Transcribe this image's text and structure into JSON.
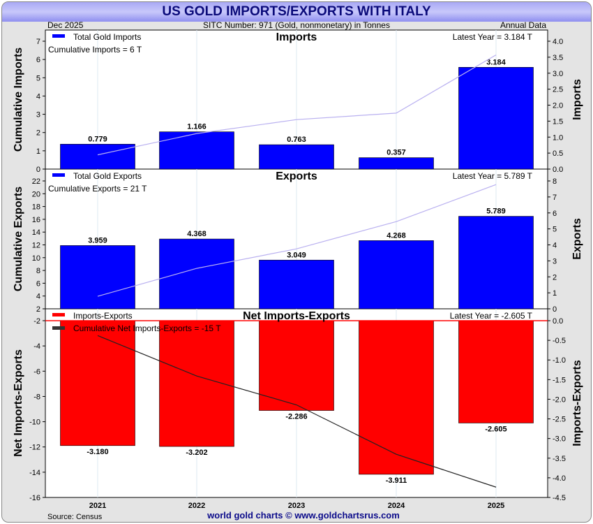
{
  "title": "US GOLD IMPORTS/EXPORTS WITH ITALY",
  "header": {
    "date": "Dec  2025",
    "sitc": "SITC Number: 971 (Gold, nonmonetary) in Tonnes",
    "period": "Annual Data"
  },
  "footer": {
    "source": "Source: Census",
    "credit": "world gold charts © www.goldchartsrus.com"
  },
  "colors": {
    "imports": "#0000ff",
    "exports": "#0000ff",
    "net": "#ff0000",
    "cum_line": "#b9b0f0",
    "net_cum_line": "#222222"
  },
  "chart_data": [
    {
      "type": "bar",
      "title": "Imports",
      "legend": "Total Gold Imports",
      "annotation": "Cumulative Imports = 6 T",
      "latest": "Latest Year = 3.184 T",
      "categories": [
        "2021",
        "2022",
        "2023",
        "2024",
        "2025"
      ],
      "values": [
        0.779,
        1.166,
        0.763,
        0.357,
        3.184
      ],
      "labels": [
        "0.779",
        "1.166",
        "0.763",
        "0.357",
        "3.184"
      ],
      "cumulative": [
        0.779,
        1.945,
        2.708,
        3.065,
        6.249
      ],
      "ylabel_left": "Cumulative Imports",
      "ylabel_right": "Imports",
      "ylim_left": [
        0,
        7
      ],
      "ylim_right": [
        0,
        4
      ],
      "ticks_left": [
        "0",
        "1",
        "2",
        "3",
        "4",
        "5",
        "6",
        "7"
      ],
      "ticks_right": [
        "0.0",
        "0.5",
        "1.0",
        "1.5",
        "2.0",
        "2.5",
        "3.0",
        "3.5",
        "4.0"
      ]
    },
    {
      "type": "bar",
      "title": "Exports",
      "legend": "Total Gold Exports",
      "annotation": "Cumulative Exports = 21 T",
      "latest": "Latest Year = 5.789 T",
      "categories": [
        "2021",
        "2022",
        "2023",
        "2024",
        "2025"
      ],
      "values": [
        3.959,
        4.368,
        3.049,
        4.268,
        5.789
      ],
      "labels": [
        "3.959",
        "4.368",
        "3.049",
        "4.268",
        "5.789"
      ],
      "cumulative": [
        3.959,
        8.327,
        11.376,
        15.644,
        21.433
      ],
      "ylabel_left": "Cumulative Exports",
      "ylabel_right": "Exports",
      "ylim_left": [
        2,
        22
      ],
      "ylim_right": [
        0,
        8
      ],
      "ticks_left": [
        "2",
        "4",
        "6",
        "8",
        "10",
        "12",
        "14",
        "16",
        "18",
        "20",
        "22"
      ],
      "ticks_right": [
        "0",
        "1",
        "2",
        "3",
        "4",
        "5",
        "6",
        "7",
        "8"
      ]
    },
    {
      "type": "bar",
      "title": "Net Imports-Exports",
      "legend": "Imports-Exports",
      "legend2": "Cumulative Net Imports-Exports = -15 T",
      "latest": "Latest Year = -2.605 T",
      "categories": [
        "2021",
        "2022",
        "2023",
        "2024",
        "2025"
      ],
      "values": [
        -3.18,
        -3.202,
        -2.286,
        -3.911,
        -2.605
      ],
      "labels": [
        "-3.180",
        "-3.202",
        "-2.286",
        "-3.911",
        "-2.605"
      ],
      "cumulative": [
        -3.18,
        -6.382,
        -8.668,
        -12.579,
        -15.184
      ],
      "ylabel_left": "Net Imports-Exports",
      "ylabel_right": "Imports-Exports",
      "ylim_left": [
        -16,
        -2
      ],
      "ylim_right": [
        -4.5,
        0
      ],
      "ticks_left": [
        "-16",
        "-14",
        "-12",
        "-10",
        "-8",
        "-6",
        "-4",
        "-2"
      ],
      "ticks_right": [
        "-4.5",
        "-4.0",
        "-3.5",
        "-3.0",
        "-2.5",
        "-2.0",
        "-1.5",
        "-1.0",
        "-0.5",
        "0.0"
      ]
    }
  ]
}
